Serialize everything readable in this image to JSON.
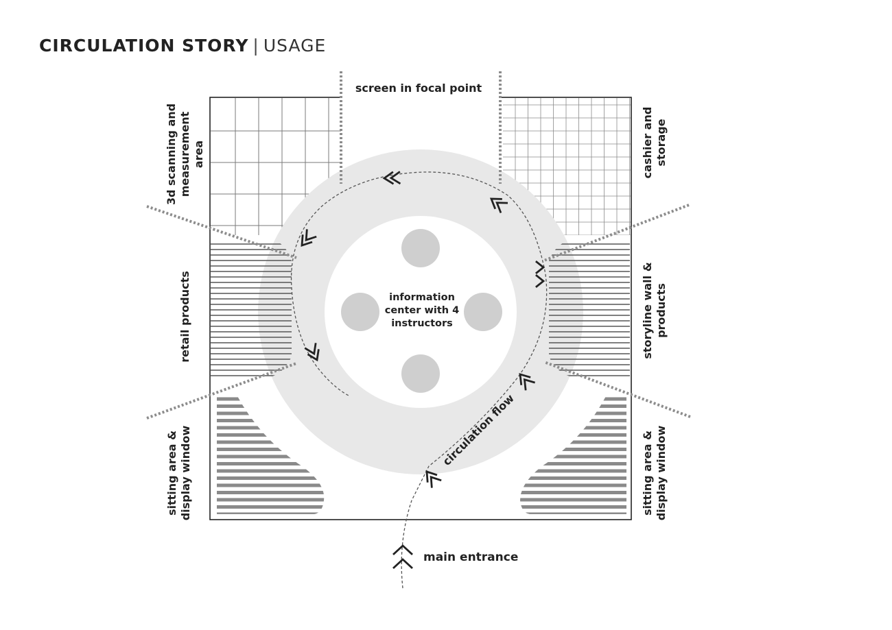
{
  "header": {
    "title_bold": "CIRCULATION STORY",
    "separator": "|",
    "title_light": "USAGE"
  },
  "labels": {
    "screen": "screen in focal point",
    "scanning": [
      "3d scanning and",
      "measurement",
      "area"
    ],
    "cashier": [
      "cashier and",
      "storage"
    ],
    "retail": "retail products",
    "storyline": [
      "storyline wall &",
      "products"
    ],
    "sitting_left": [
      "sitting area &",
      "display window"
    ],
    "sitting_right": [
      "sitting area &",
      "display window"
    ],
    "info_center": [
      "information",
      "center with 4",
      "instructors"
    ],
    "circulation": "circulation flow",
    "entrance": "main entrance"
  },
  "colors": {
    "ink": "#222222",
    "ring": "#e8e8e8",
    "pod": "#cfcfcf",
    "grid": "#7a7a7a",
    "hatch": "#555555",
    "hatch_sitting": "#8a8a8a",
    "dotted": "#8c8c8c"
  }
}
